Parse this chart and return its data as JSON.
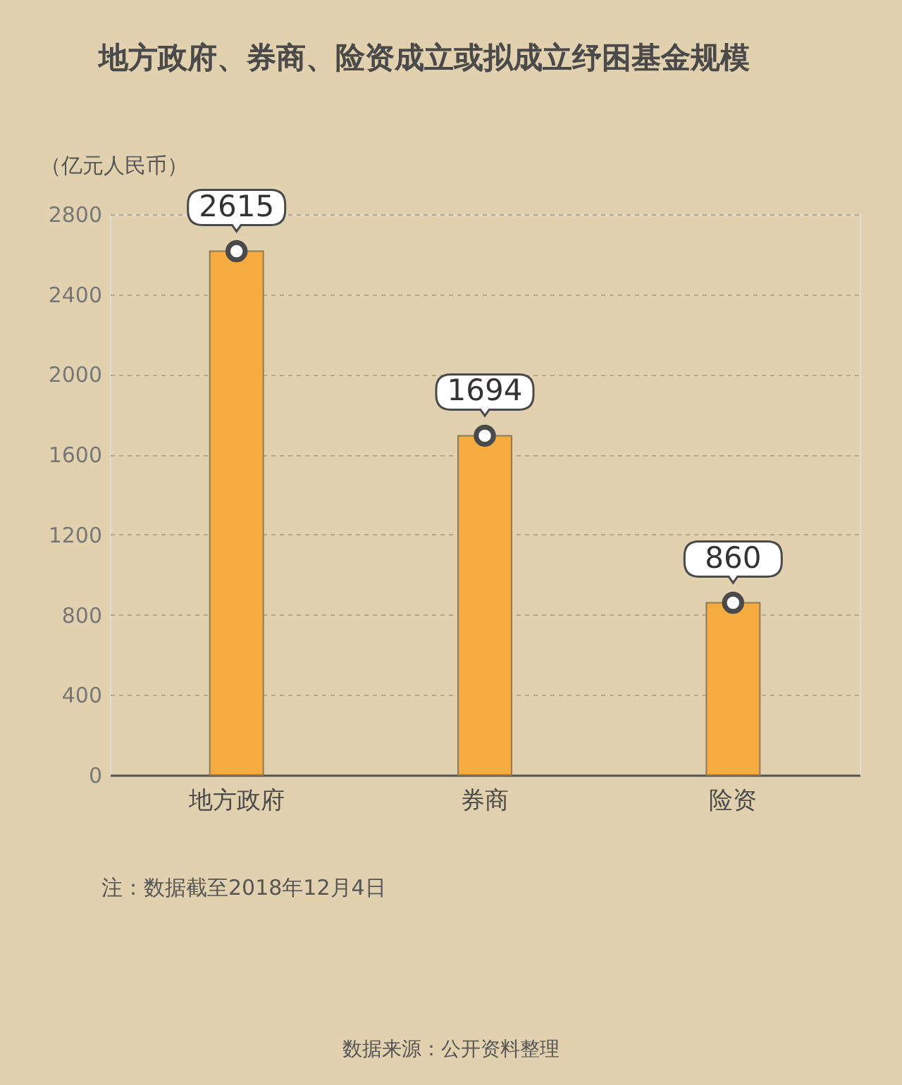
{
  "chart_data": {
    "type": "bar",
    "title": "地方政府、券商、险资成立或拟成立纾困基金规模",
    "ylabel": "（亿元人民币）",
    "categories": [
      "地方政府",
      "券商",
      "险资"
    ],
    "series": [
      {
        "color": "#f5ab3f",
        "values": [
          2615,
          1694,
          860
        ]
      },
      {
        "type": "scatter",
        "color": "#ffffff",
        "x": [
          "地方政府",
          "券商",
          "险资"
        ],
        "values": [
          2615,
          1694,
          860
        ],
        "value_labels": [
          "2615",
          "1694",
          "860"
        ]
      }
    ],
    "ylim": [
      0,
      2800
    ],
    "yticks": [
      0,
      400,
      800,
      1200,
      1600,
      2000,
      2400,
      2800
    ],
    "grid": "y",
    "marker": "circle",
    "annotations": [
      "注：数据截至2018年12月4日",
      "数据来源：公开资料整理"
    ]
  }
}
